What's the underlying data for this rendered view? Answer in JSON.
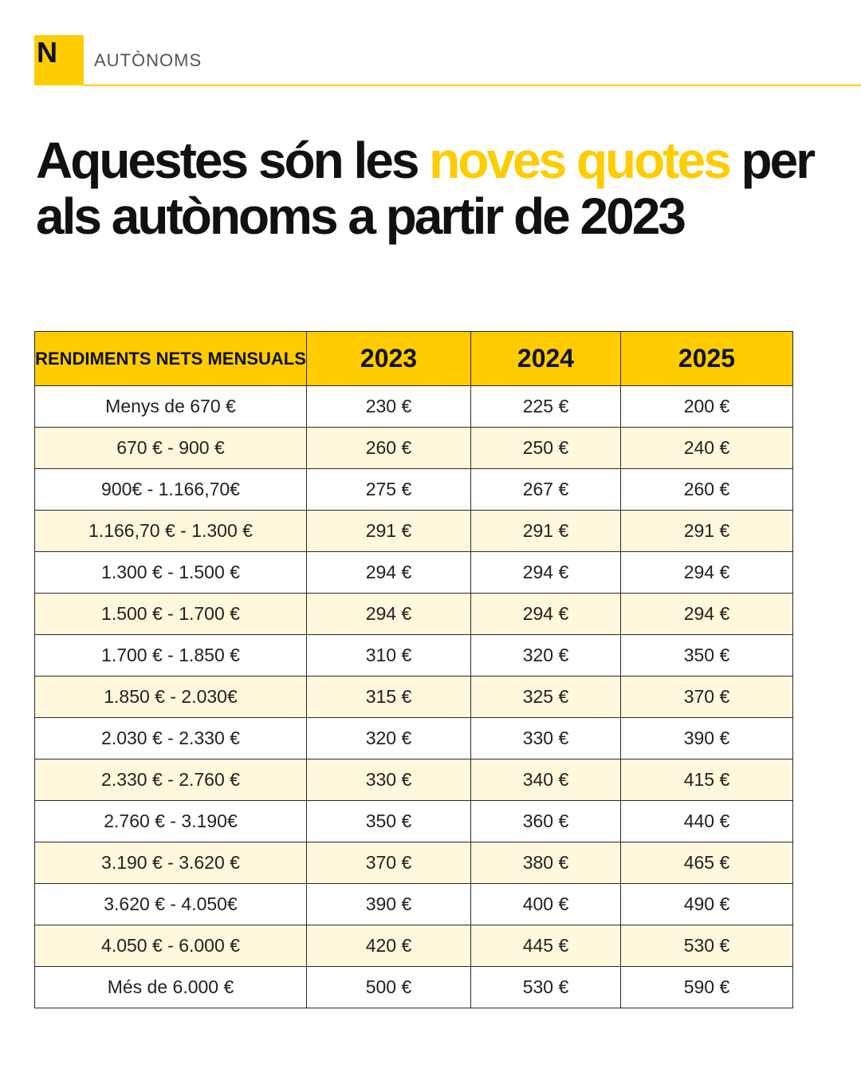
{
  "header": {
    "logo_letter": "N",
    "section": "AUTÒNOMS"
  },
  "headline": {
    "part1": "Aquestes són les ",
    "highlight": "noves quotes",
    "part2": " per als autònoms a partir de 2023"
  },
  "colors": {
    "accent": "#ffcc00",
    "stripe": "#fff8dc",
    "text": "#111111"
  },
  "table": {
    "headers": [
      "RENDIMENTS NETS MENSUALS",
      "2023",
      "2024",
      "2025"
    ],
    "rows": [
      [
        "Menys de 670 €",
        "230 €",
        "225 €",
        "200 €"
      ],
      [
        "670 € - 900 €",
        "260 €",
        "250 €",
        "240 €"
      ],
      [
        "900€ - 1.166,70€",
        "275 €",
        "267 €",
        "260 €"
      ],
      [
        "1.166,70 € - 1.300 €",
        "291 €",
        "291 €",
        "291 €"
      ],
      [
        "1.300 € - 1.500 €",
        "294 €",
        "294 €",
        "294 €"
      ],
      [
        "1.500 € - 1.700 €",
        "294 €",
        "294 €",
        "294 €"
      ],
      [
        "1.700 € - 1.850 €",
        "310 €",
        "320 €",
        "350 €"
      ],
      [
        "1.850 € - 2.030€",
        "315 €",
        "325 €",
        "370 €"
      ],
      [
        "2.030 € - 2.330 €",
        "320 €",
        "330 €",
        "390 €"
      ],
      [
        "2.330 € - 2.760 €",
        "330 €",
        "340 €",
        "415 €"
      ],
      [
        "2.760 € - 3.190€",
        "350 €",
        "360 €",
        "440 €"
      ],
      [
        "3.190 € - 3.620 €",
        "370 €",
        "380 €",
        "465 €"
      ],
      [
        "3.620 € - 4.050€",
        "390 €",
        "400 €",
        "490 €"
      ],
      [
        "4.050 € - 6.000 €",
        "420 €",
        "445 €",
        "530 €"
      ],
      [
        "Més de 6.000 €",
        "500 €",
        "530 €",
        "590 €"
      ]
    ]
  }
}
